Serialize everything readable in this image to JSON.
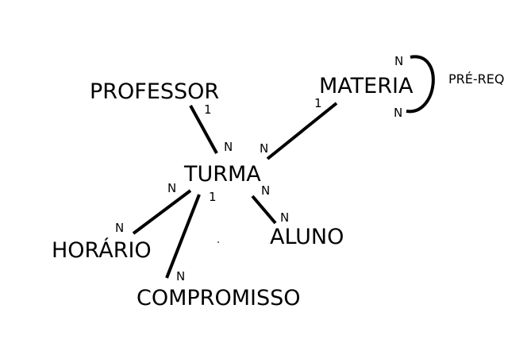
{
  "entities": {
    "professor": "PROFESSOR",
    "materia": "MATERIA",
    "turma": "TURMA",
    "horario": "HORÁRIO",
    "compromisso": "COMPROMISSO",
    "aluno": "ALUNO"
  },
  "self_relationship": "PRÉ-REQ",
  "cardinalities": {
    "professor_side": "1",
    "turma_professor_side": "N",
    "materia_side": "1",
    "turma_materia_side": "N",
    "pre_req_top": "N",
    "pre_req_bottom": "N",
    "turma_horario_side": "N",
    "horario_side": "N",
    "turma_compromisso_side": "1",
    "compromisso_side": "N",
    "turma_aluno_side": "N",
    "aluno_side": "N"
  }
}
